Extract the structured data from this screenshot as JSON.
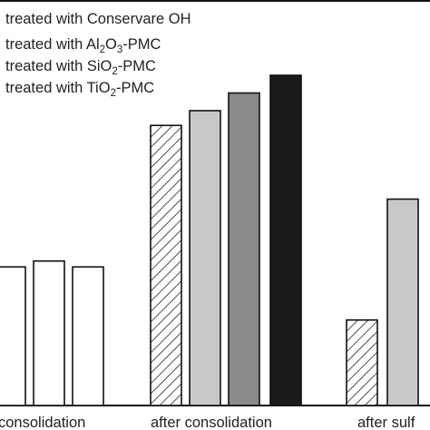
{
  "chart_data": {
    "type": "bar",
    "title": "",
    "xlabel": "",
    "ylabel": "",
    "categories": [
      "consolidation",
      "after consolidation",
      "after sulf"
    ],
    "series": [
      {
        "name": "treated with Conservare OH",
        "style": "hatched",
        "values": [
          0.47,
          0.95,
          0.29
        ]
      },
      {
        "name": "treated with Al2O3-PMC",
        "style": "light-gray",
        "values": [
          0.49,
          1.0,
          0.7
        ]
      },
      {
        "name": "treated with SiO2-PMC",
        "style": "dark-gray",
        "values": [
          0.47,
          1.06,
          null
        ]
      },
      {
        "name": "treated with TiO2-PMC",
        "style": "black",
        "values": [
          null,
          1.12,
          null
        ]
      }
    ],
    "ylim": [
      0,
      1.3
    ],
    "grid": false,
    "legend_position": "top-left"
  },
  "legend": {
    "entry1": "treated with Conservare OH",
    "entry2_prefix": "treated with Al",
    "entry2_sub1": "2",
    "entry2_mid": "O",
    "entry2_sub2": "3",
    "entry2_suffix": "-PMC",
    "entry3_prefix": "treated with SiO",
    "entry3_sub": "2",
    "entry3_suffix": "-PMC",
    "entry4_prefix": "treated with TiO",
    "entry4_sub": "2",
    "entry4_suffix": "-PMC"
  },
  "colors": {
    "outline": "#111111",
    "hatched_fill": "#ffffff",
    "light_gray": "#c8c8c8",
    "dark_gray": "#8a8a8a",
    "black": "#1a1a1a",
    "white_bar": "#ffffff"
  }
}
